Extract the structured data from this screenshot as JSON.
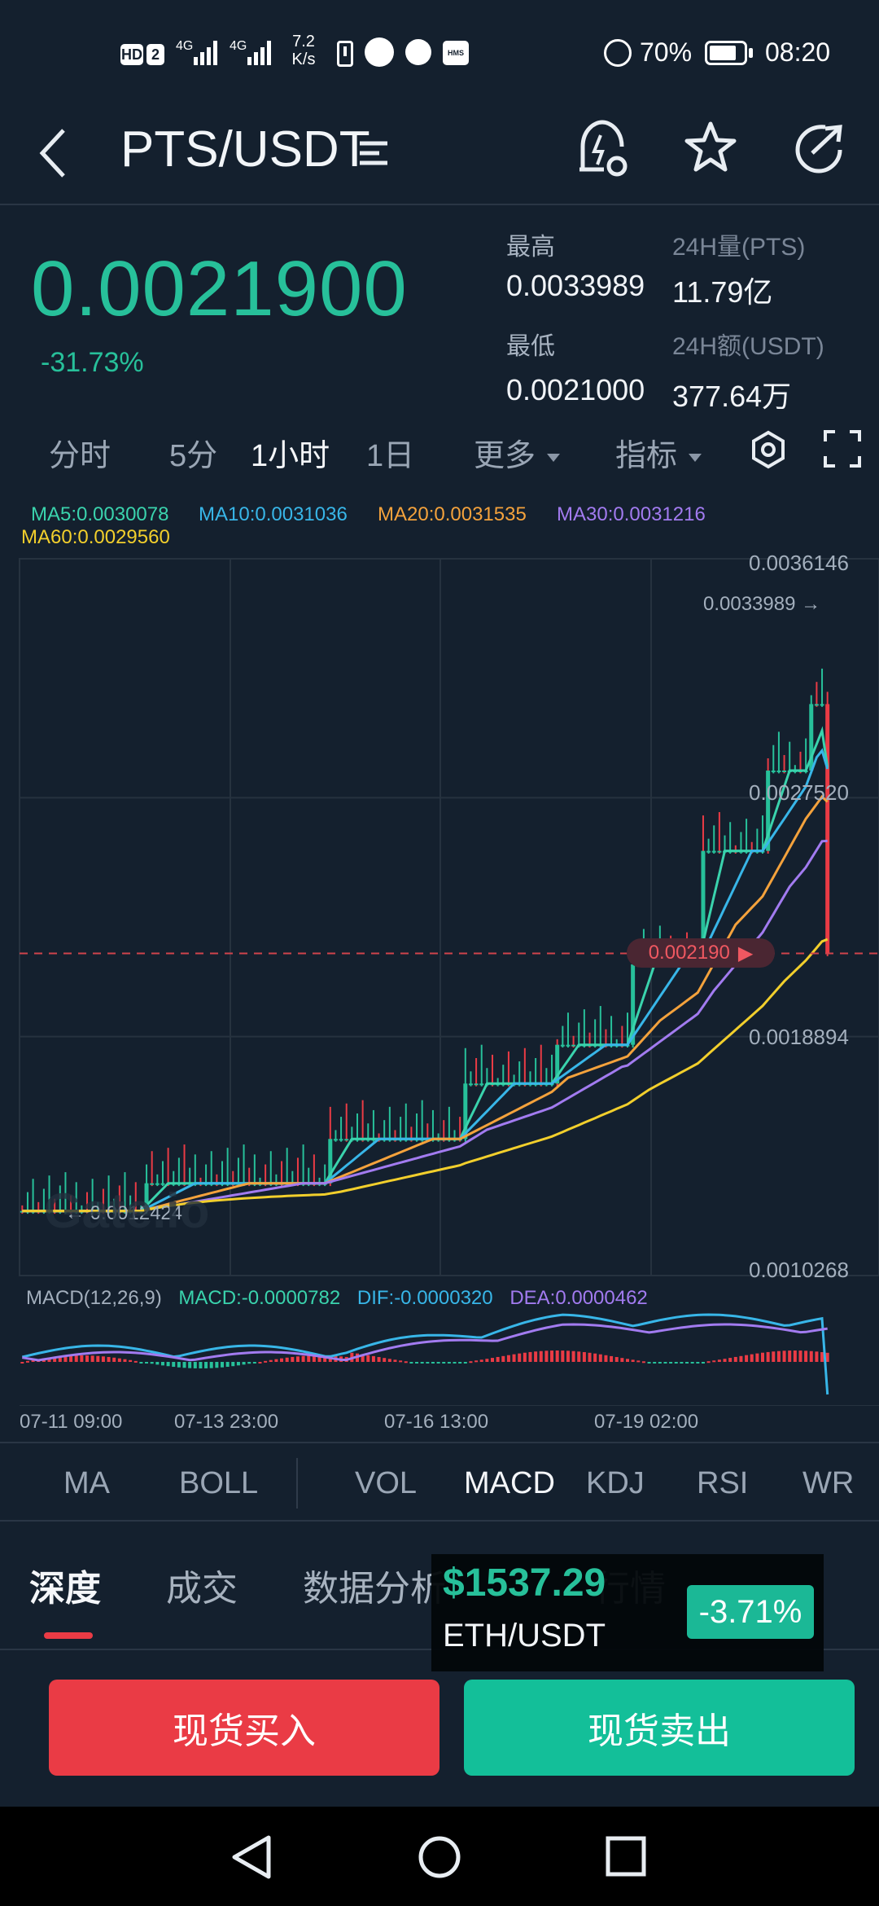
{
  "status_bar": {
    "hd": "HD",
    "sim": "2",
    "net1": "4G",
    "net2": "4G",
    "speed_value": "7.2",
    "speed_unit": "K/s",
    "hms": "HMS",
    "battery": "70%",
    "time": "08:20"
  },
  "header": {
    "pair": "PTS/USDT"
  },
  "ticker": {
    "price": "0.0021900",
    "change": "-31.73%",
    "high_label": "最高",
    "high_value": "0.0033989",
    "low_label": "最低",
    "low_value": "0.0021000",
    "vol_label": "24H量(PTS)",
    "vol_value": "11.79亿",
    "amount_label": "24H额(USDT)",
    "amount_value": "377.64万"
  },
  "timeframes": [
    "分时",
    "5分",
    "1小时",
    "1日",
    "更多",
    "指标"
  ],
  "ma_legend": {
    "ma5": "MA5:0.0030078",
    "ma10": "MA10:0.0031036",
    "ma20": "MA20:0.0031535",
    "ma30": "MA30:0.0031216",
    "ma60": "MA60:0.0029560"
  },
  "chart": {
    "y_labels": [
      "0.0036146",
      "0.0027520",
      "0.0018894",
      "0.0010268"
    ],
    "high_marker": "0.0033989",
    "low_marker": "0.0012424",
    "current_marker": "0.002190",
    "watermark": "Gate.io",
    "macd_legend": {
      "title": "MACD(12,26,9)",
      "macd": "MACD:-0.0000782",
      "dif": "DIF:-0.0000320",
      "dea": "DEA:0.0000462"
    },
    "time_labels": [
      "07-11 09:00",
      "07-13 23:00",
      "07-16 13:00",
      "07-19 02:00"
    ]
  },
  "chart_data": {
    "type": "candlestick",
    "x": [
      "07-11 09:00",
      "07-13 23:00",
      "07-16 13:00",
      "07-19 02:00"
    ],
    "ylim": [
      0.0010268,
      0.0036146
    ],
    "y_ticks": [
      0.0036146,
      0.002752,
      0.0018894,
      0.0010268
    ],
    "current_price": 0.00219,
    "period_high": 0.0033989,
    "period_low": 0.0012424,
    "series": [
      {
        "name": "MA5",
        "color": "#3ad3ad",
        "last": 0.0030078
      },
      {
        "name": "MA10",
        "color": "#38b6e8",
        "last": 0.0031036
      },
      {
        "name": "MA20",
        "color": "#f4a23c",
        "last": 0.0031535
      },
      {
        "name": "MA30",
        "color": "#a27bf0",
        "last": 0.0031216
      },
      {
        "name": "MA60",
        "color": "#f2cf2c",
        "last": 0.002956
      }
    ]
  },
  "indicators": [
    "MA",
    "BOLL",
    "VOL",
    "MACD",
    "KDJ",
    "RSI",
    "WR"
  ],
  "bottom_tabs": [
    "深度",
    "成交",
    "数据分析",
    "行情"
  ],
  "floating_ticker": {
    "price": "$1537.29",
    "pair": "ETH/USDT",
    "change": "-3.71%"
  },
  "actions": {
    "buy": "现货买入",
    "sell": "现货卖出"
  },
  "colors": {
    "up": "#27c09a",
    "down": "#ea3b45",
    "background": "#14202e"
  }
}
